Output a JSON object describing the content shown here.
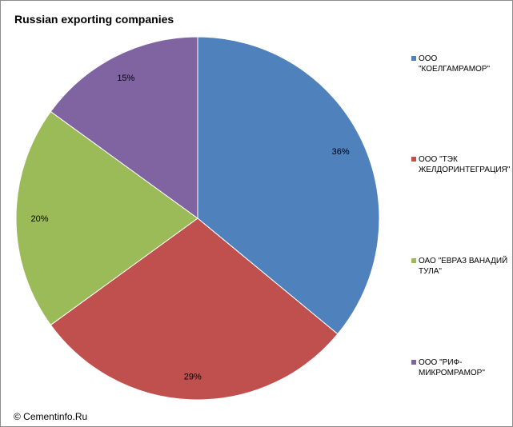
{
  "chart_data": {
    "type": "pie",
    "title": "Russian exporting companies",
    "categories": [
      "ООО \"КОЕЛГАМРАМОР\"",
      "ООО \"ТЭК ЖЕЛДОРИНТЕГРАЦИЯ\"",
      "ОАО \"ЕВРАЗ ВАНАДИЙ ТУЛА\"",
      "ООО \"РИФ-МИКРОМРАМОР\""
    ],
    "values": [
      36,
      29,
      20,
      15
    ],
    "value_labels": [
      "36%",
      "29%",
      "20%",
      "15%"
    ],
    "colors": [
      "#4F81BD",
      "#C0504D",
      "#9BBB59",
      "#8064A2"
    ],
    "legend_position": "right",
    "start_angle": "12 o'clock, clockwise"
  },
  "footer": {
    "credit": "© Cementinfo.Ru"
  }
}
